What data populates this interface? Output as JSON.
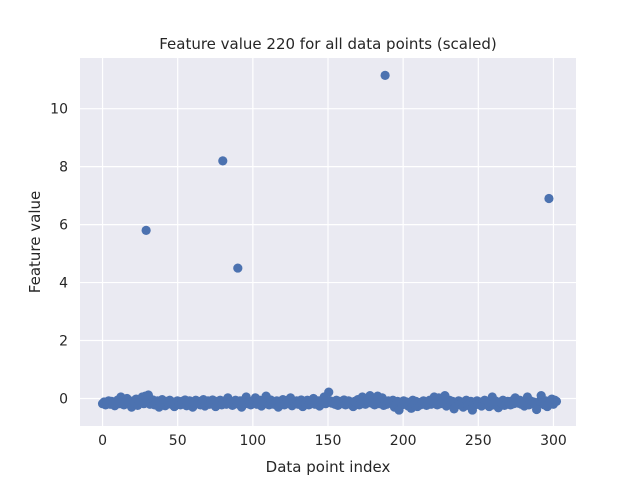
{
  "chart_data": {
    "type": "scatter",
    "title": "Feature value 220 for all data points (scaled)",
    "xlabel": "Data point index",
    "ylabel": "Feature value",
    "xlim": [
      -15,
      315
    ],
    "ylim": [
      -0.95,
      11.75
    ],
    "xticks": [
      0,
      50,
      100,
      150,
      200,
      250,
      300
    ],
    "yticks": [
      0,
      2,
      4,
      6,
      8,
      10
    ],
    "grid": true,
    "background_color": "#eaeaf2",
    "marker_color": "#4c72b0",
    "outliers": [
      {
        "x": 29,
        "y": 5.8
      },
      {
        "x": 80,
        "y": 8.2
      },
      {
        "x": 90,
        "y": 4.5
      },
      {
        "x": 188,
        "y": 11.15
      },
      {
        "x": 297,
        "y": 6.9
      }
    ],
    "baseline": {
      "x_start": 0,
      "x_end": 302,
      "y_values": [
        -0.18,
        -0.12,
        -0.22,
        -0.15,
        -0.08,
        -0.2,
        -0.1,
        -0.16,
        -0.25,
        -0.12,
        -0.05,
        -0.18,
        0.05,
        -0.1,
        -0.22,
        -0.14,
        0.0,
        -0.12,
        -0.2,
        -0.3,
        -0.08,
        -0.16,
        -0.02,
        -0.24,
        -0.12,
        -0.06,
        0.05,
        -0.18,
        0.08,
        -0.1,
        0.12,
        -0.2,
        -0.14,
        -0.05,
        -0.22,
        -0.16,
        -0.08,
        -0.3,
        -0.12,
        -0.04,
        -0.18,
        -0.25,
        -0.1,
        -0.15,
        -0.06,
        -0.2,
        -0.12,
        -0.28,
        -0.16,
        -0.08,
        -0.14,
        -0.22,
        -0.1,
        -0.18,
        -0.05,
        -0.25,
        -0.12,
        -0.08,
        -0.2,
        -0.3,
        -0.14,
        -0.06,
        -0.18,
        -0.1,
        -0.22,
        -0.16,
        -0.04,
        -0.26,
        -0.12,
        -0.08,
        -0.2,
        -0.14,
        -0.05,
        -0.18,
        -0.28,
        -0.1,
        -0.16,
        -0.06,
        -0.22,
        -0.12,
        -0.08,
        -0.2,
        0.02,
        -0.15,
        -0.1,
        -0.24,
        -0.18,
        -0.06,
        -0.12,
        -0.2,
        -0.08,
        -0.3,
        -0.14,
        -0.04,
        0.05,
        -0.18,
        -0.1,
        -0.22,
        -0.16,
        -0.08,
        0.02,
        -0.2,
        -0.12,
        -0.06,
        -0.26,
        -0.14,
        -0.1,
        0.08,
        -0.18,
        -0.22,
        -0.05,
        -0.12,
        -0.2,
        -0.16,
        -0.08,
        -0.3,
        -0.1,
        -0.14,
        -0.04,
        -0.22,
        -0.18,
        -0.06,
        -0.12,
        0.02,
        -0.25,
        -0.1,
        -0.16,
        -0.08,
        -0.2,
        -0.14,
        -0.05,
        -0.28,
        -0.12,
        -0.18,
        -0.06,
        -0.22,
        -0.1,
        -0.16,
        0.0,
        -0.2,
        -0.12,
        -0.08,
        -0.26,
        -0.14,
        -0.04,
        0.05,
        -0.18,
        -0.1,
        0.22,
        -0.08,
        -0.16,
        -0.12,
        -0.2,
        -0.06,
        -0.24,
        -0.1,
        -0.14,
        -0.18,
        -0.05,
        -0.22,
        -0.12,
        -0.08,
        -0.2,
        -0.16,
        -0.28,
        -0.1,
        -0.14,
        -0.04,
        -0.22,
        -0.18,
        0.05,
        -0.12,
        -0.2,
        -0.08,
        -0.14,
        0.1,
        -0.16,
        -0.06,
        -0.22,
        -0.12,
        0.08,
        -0.18,
        -0.1,
        0.02,
        -0.24,
        -0.14,
        -0.2,
        -0.08,
        -0.16,
        -0.12,
        -0.06,
        -0.3,
        -0.2,
        -0.1,
        -0.4,
        -0.14,
        -0.22,
        -0.08,
        -0.18,
        -0.12,
        -0.26,
        -0.16,
        -0.34,
        -0.06,
        -0.2,
        -0.1,
        -0.28,
        -0.14,
        -0.22,
        -0.18,
        -0.08,
        -0.12,
        -0.24,
        -0.16,
        -0.06,
        -0.2,
        -0.1,
        0.05,
        -0.14,
        -0.22,
        0.02,
        -0.18,
        -0.12,
        -0.08,
        0.1,
        -0.26,
        -0.16,
        -0.06,
        -0.2,
        -0.1,
        -0.36,
        -0.14,
        -0.22,
        -0.08,
        -0.18,
        -0.12,
        -0.3,
        -0.16,
        -0.06,
        -0.24,
        -0.2,
        -0.1,
        -0.4,
        -0.14,
        -0.22,
        -0.08,
        -0.18,
        -0.12,
        -0.26,
        -0.16,
        -0.06,
        -0.2,
        -0.1,
        -0.28,
        -0.14,
        0.05,
        -0.22,
        -0.08,
        -0.18,
        -0.32,
        -0.12,
        -0.16,
        -0.06,
        -0.24,
        -0.2,
        -0.1,
        -0.14,
        -0.22,
        -0.08,
        -0.18,
        0.02,
        -0.12,
        -0.16,
        -0.06,
        -0.2,
        -0.1,
        -0.26,
        -0.14,
        0.05,
        -0.22,
        -0.08,
        -0.18,
        -0.12,
        -0.16,
        -0.38,
        -0.2,
        -0.1,
        0.1,
        -0.14,
        -0.22,
        -0.08,
        -0.28,
        -0.18,
        -0.12,
        -0.02,
        -0.2,
        -0.06,
        -0.1
      ]
    }
  }
}
